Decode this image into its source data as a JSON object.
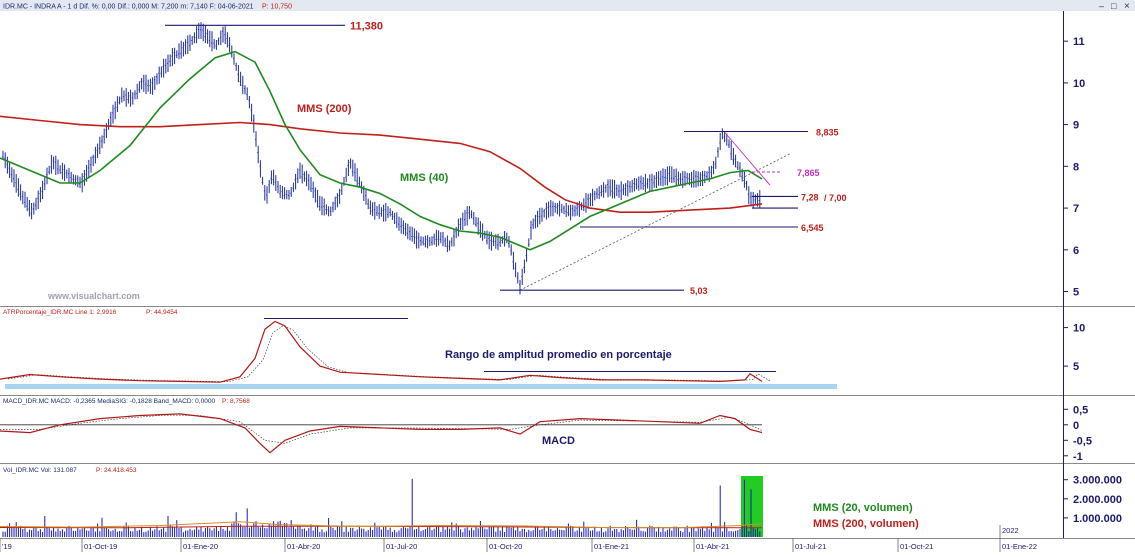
{
  "header": {
    "main_info": "IDR.MC - INDRA A - 1 d Dif. %: 0,00 Dif.: 0,000 M: 7,200 m: 7,140 F: 04-06-2021",
    "main_p": "P: 10,750",
    "atr_info": "ATRPorcentaje_IDR.MC Line 1: 2,9916",
    "atr_p": "P: 44,9454",
    "macd_info": "MACD_IDR.MC MACD: -0,2365 MediaSIG: -0,1828 Band_MACD: 0,0000",
    "macd_p": "P: 8,7568",
    "vol_info": "Vol_IDR.MC Vol: 131.087",
    "vol_p": "P: 24.418.453"
  },
  "window_controls": {
    "minimize": "–",
    "maximize": "□",
    "close": "×"
  },
  "watermark": "www.visualchart.com",
  "colors": {
    "price_bars": "#1a2a9c",
    "mms200": "#c0201a",
    "mms40": "#1e8a1e",
    "line_level": "#1a1a6e",
    "label_red": "#c0201a",
    "label_magenta": "#c030c0",
    "label_green": "#1e8a1e",
    "label_navy": "#1a1a6e",
    "highlight_blue": "#a8d4f0",
    "highlight_green": "#22cc22",
    "axis": "#1a1a6e"
  },
  "chart_data": [
    {
      "type": "candlestick",
      "pane": "price",
      "ylim": [
        4.7,
        11.7
      ],
      "y_ticks": [
        "11",
        "10",
        "9",
        "8",
        "7",
        "6",
        "5"
      ],
      "x_ticks": [
        "'19",
        "01-Oct-19",
        "01-Ene-20",
        "01-Abr-20",
        "01-Jul-20",
        "01-Oct-20",
        "01-Ene-21",
        "01-Abr-21",
        "01-Jul-21",
        "01-Oct-21",
        "01-Ene-22"
      ],
      "x_tick_extra": "2022",
      "price_path": [
        [
          0,
          8.4
        ],
        [
          12,
          7.8
        ],
        [
          22,
          7.3
        ],
        [
          32,
          6.9
        ],
        [
          42,
          7.4
        ],
        [
          52,
          8.1
        ],
        [
          62,
          7.9
        ],
        [
          72,
          7.7
        ],
        [
          82,
          7.6
        ],
        [
          92,
          8.1
        ],
        [
          102,
          8.6
        ],
        [
          112,
          9.2
        ],
        [
          122,
          9.7
        ],
        [
          132,
          9.6
        ],
        [
          142,
          10.0
        ],
        [
          152,
          9.9
        ],
        [
          162,
          10.3
        ],
        [
          172,
          10.6
        ],
        [
          182,
          10.8
        ],
        [
          192,
          11.0
        ],
        [
          200,
          11.3
        ],
        [
          208,
          11.1
        ],
        [
          216,
          10.9
        ],
        [
          224,
          11.2
        ],
        [
          230,
          10.9
        ],
        [
          236,
          10.4
        ],
        [
          242,
          10.0
        ],
        [
          248,
          9.7
        ],
        [
          254,
          9.0
        ],
        [
          260,
          8.0
        ],
        [
          266,
          7.2
        ],
        [
          272,
          7.8
        ],
        [
          280,
          7.4
        ],
        [
          290,
          7.3
        ],
        [
          300,
          7.9
        ],
        [
          310,
          7.6
        ],
        [
          320,
          7.1
        ],
        [
          330,
          6.9
        ],
        [
          340,
          7.3
        ],
        [
          350,
          8.1
        ],
        [
          360,
          7.6
        ],
        [
          370,
          7.0
        ],
        [
          380,
          6.9
        ],
        [
          390,
          6.9
        ],
        [
          400,
          6.6
        ],
        [
          410,
          6.4
        ],
        [
          420,
          6.2
        ],
        [
          430,
          6.2
        ],
        [
          440,
          6.3
        ],
        [
          450,
          6.1
        ],
        [
          460,
          6.6
        ],
        [
          470,
          6.9
        ],
        [
          480,
          6.5
        ],
        [
          490,
          6.2
        ],
        [
          500,
          6.2
        ],
        [
          508,
          6.3
        ],
        [
          514,
          5.7
        ],
        [
          520,
          5.1
        ],
        [
          526,
          5.8
        ],
        [
          532,
          6.6
        ],
        [
          540,
          6.8
        ],
        [
          550,
          7.0
        ],
        [
          560,
          7.0
        ],
        [
          570,
          6.9
        ],
        [
          580,
          7.0
        ],
        [
          590,
          7.2
        ],
        [
          600,
          7.4
        ],
        [
          610,
          7.5
        ],
        [
          620,
          7.4
        ],
        [
          630,
          7.5
        ],
        [
          640,
          7.6
        ],
        [
          650,
          7.6
        ],
        [
          660,
          7.7
        ],
        [
          670,
          7.8
        ],
        [
          680,
          7.7
        ],
        [
          690,
          7.7
        ],
        [
          700,
          7.7
        ],
        [
          710,
          7.8
        ],
        [
          716,
          8.1
        ],
        [
          722,
          8.8
        ],
        [
          728,
          8.6
        ],
        [
          734,
          8.2
        ],
        [
          740,
          7.9
        ],
        [
          746,
          7.6
        ],
        [
          750,
          7.2
        ],
        [
          756,
          7.2
        ],
        [
          762,
          7.2
        ]
      ],
      "mms40": [
        [
          0,
          8.2
        ],
        [
          30,
          7.9
        ],
        [
          60,
          7.6
        ],
        [
          80,
          7.6
        ],
        [
          100,
          7.9
        ],
        [
          130,
          8.5
        ],
        [
          160,
          9.4
        ],
        [
          190,
          10.1
        ],
        [
          215,
          10.6
        ],
        [
          235,
          10.75
        ],
        [
          255,
          10.5
        ],
        [
          270,
          9.8
        ],
        [
          285,
          9.0
        ],
        [
          300,
          8.4
        ],
        [
          320,
          7.8
        ],
        [
          340,
          7.6
        ],
        [
          360,
          7.5
        ],
        [
          380,
          7.35
        ],
        [
          400,
          7.1
        ],
        [
          420,
          6.8
        ],
        [
          440,
          6.6
        ],
        [
          460,
          6.45
        ],
        [
          480,
          6.4
        ],
        [
          500,
          6.3
        ],
        [
          515,
          6.15
        ],
        [
          530,
          6.0
        ],
        [
          550,
          6.2
        ],
        [
          570,
          6.5
        ],
        [
          590,
          6.8
        ],
        [
          610,
          7.0
        ],
        [
          630,
          7.2
        ],
        [
          650,
          7.4
        ],
        [
          670,
          7.5
        ],
        [
          690,
          7.6
        ],
        [
          710,
          7.7
        ],
        [
          730,
          7.85
        ],
        [
          748,
          7.9
        ],
        [
          762,
          7.7
        ]
      ],
      "mms200": [
        [
          0,
          9.2
        ],
        [
          40,
          9.1
        ],
        [
          80,
          9.0
        ],
        [
          120,
          8.95
        ],
        [
          160,
          8.95
        ],
        [
          200,
          9.0
        ],
        [
          240,
          9.05
        ],
        [
          270,
          9.0
        ],
        [
          300,
          8.9
        ],
        [
          340,
          8.8
        ],
        [
          380,
          8.75
        ],
        [
          420,
          8.65
        ],
        [
          460,
          8.55
        ],
        [
          490,
          8.35
        ],
        [
          520,
          7.95
        ],
        [
          545,
          7.5
        ],
        [
          565,
          7.2
        ],
        [
          590,
          7.0
        ],
        [
          620,
          6.9
        ],
        [
          650,
          6.9
        ],
        [
          690,
          6.95
        ],
        [
          730,
          7.0
        ],
        [
          762,
          7.1
        ]
      ],
      "levels": [
        {
          "label": "11,380",
          "value": 11.38,
          "color": "label_red",
          "x0": 165,
          "x1": 345
        },
        {
          "label": "8,835",
          "value": 8.835,
          "color": "label_red",
          "x0": 684,
          "x1": 808
        },
        {
          "label": "7,865",
          "value": 7.865,
          "color": "label_magenta",
          "x0": 752,
          "x1": 780
        },
        {
          "label": "7,28",
          "value": 7.28,
          "color": "label_red",
          "x0": 752,
          "x1": 798
        },
        {
          "label": "/ 7,00",
          "value": 7.0,
          "color": "label_red",
          "x0": 752,
          "x1": 798
        },
        {
          "label": "6,545",
          "value": 6.545,
          "color": "label_red",
          "x0": 580,
          "x1": 798
        },
        {
          "label": "5,03",
          "value": 5.03,
          "color": "label_red",
          "x0": 500,
          "x1": 684
        }
      ],
      "annotations": {
        "mms200_label": "MMS (200)",
        "mms40_label": "MMS (40)"
      }
    },
    {
      "type": "line",
      "pane": "atr",
      "ylim": [
        1.5,
        11.5
      ],
      "y_ticks": [
        "10",
        "5"
      ],
      "series": [
        {
          "name": "Line 1",
          "values": [
            [
              0,
              3.3
            ],
            [
              30,
              3.9
            ],
            [
              60,
              3.6
            ],
            [
              100,
              3.3
            ],
            [
              140,
              3.1
            ],
            [
              180,
              3.0
            ],
            [
              220,
              2.9
            ],
            [
              240,
              3.6
            ],
            [
              255,
              6.0
            ],
            [
              265,
              9.8
            ],
            [
              275,
              10.8
            ],
            [
              285,
              10.2
            ],
            [
              300,
              7.5
            ],
            [
              320,
              5.0
            ],
            [
              340,
              4.2
            ],
            [
              380,
              3.9
            ],
            [
              420,
              3.6
            ],
            [
              460,
              3.4
            ],
            [
              500,
              3.2
            ],
            [
              515,
              3.5
            ],
            [
              530,
              3.8
            ],
            [
              560,
              3.5
            ],
            [
              600,
              3.2
            ],
            [
              640,
              3.2
            ],
            [
              680,
              3.1
            ],
            [
              720,
              3.0
            ],
            [
              745,
              3.2
            ],
            [
              750,
              4.0
            ],
            [
              762,
              3.0
            ]
          ]
        }
      ],
      "title_note": "Rango de amplitud promedio en porcentaje"
    },
    {
      "type": "line",
      "pane": "macd",
      "ylim": [
        -1.2,
        0.8
      ],
      "y_ticks": [
        "0,5",
        "0",
        "-0,5",
        "-1"
      ],
      "series": [
        {
          "name": "MACD",
          "values": [
            [
              0,
              -0.2
            ],
            [
              30,
              -0.25
            ],
            [
              60,
              0.0
            ],
            [
              100,
              0.2
            ],
            [
              140,
              0.3
            ],
            [
              180,
              0.35
            ],
            [
              220,
              0.2
            ],
            [
              245,
              -0.1
            ],
            [
              260,
              -0.6
            ],
            [
              270,
              -0.9
            ],
            [
              285,
              -0.5
            ],
            [
              310,
              -0.2
            ],
            [
              340,
              -0.05
            ],
            [
              380,
              -0.1
            ],
            [
              420,
              -0.15
            ],
            [
              460,
              -0.15
            ],
            [
              500,
              -0.1
            ],
            [
              520,
              -0.3
            ],
            [
              540,
              0.1
            ],
            [
              580,
              0.2
            ],
            [
              620,
              0.15
            ],
            [
              660,
              0.1
            ],
            [
              700,
              0.05
            ],
            [
              720,
              0.3
            ],
            [
              735,
              0.2
            ],
            [
              750,
              -0.15
            ],
            [
              762,
              -0.25
            ]
          ]
        },
        {
          "name": "MediaSIG",
          "values": [
            [
              0,
              -0.15
            ],
            [
              40,
              -0.15
            ],
            [
              80,
              0.05
            ],
            [
              120,
              0.2
            ],
            [
              160,
              0.3
            ],
            [
              200,
              0.3
            ],
            [
              240,
              0.1
            ],
            [
              265,
              -0.5
            ],
            [
              285,
              -0.6
            ],
            [
              310,
              -0.3
            ],
            [
              350,
              -0.1
            ],
            [
              400,
              -0.1
            ],
            [
              460,
              -0.12
            ],
            [
              510,
              -0.15
            ],
            [
              540,
              0.0
            ],
            [
              580,
              0.15
            ],
            [
              640,
              0.12
            ],
            [
              700,
              0.08
            ],
            [
              730,
              0.25
            ],
            [
              750,
              0.0
            ],
            [
              762,
              -0.18
            ]
          ]
        }
      ],
      "title_note": "MACD"
    },
    {
      "type": "bar",
      "pane": "volume",
      "ylim": [
        0,
        3300000
      ],
      "y_ticks": [
        "3.000.000",
        "2.000.000",
        "1.000.000"
      ],
      "notes": [
        "MMS (20, volumen)",
        "MMS (200, volumen)"
      ]
    }
  ]
}
